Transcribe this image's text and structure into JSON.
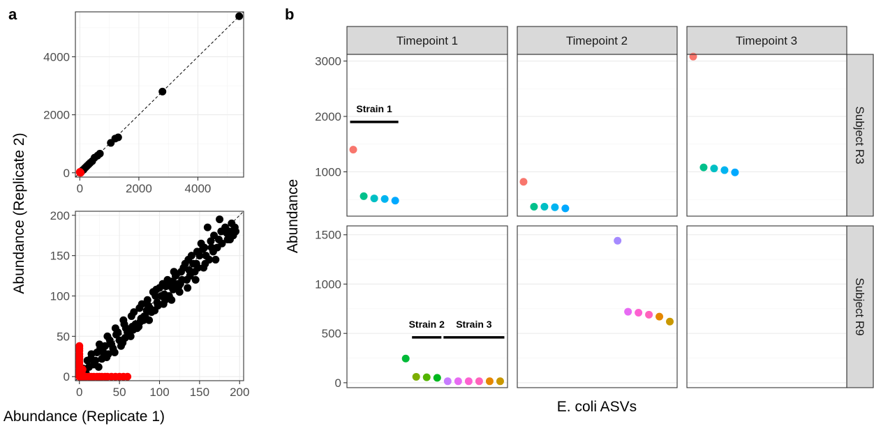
{
  "panel_a": {
    "tag": "a",
    "ylabel": "Abundance (Replicate 2)",
    "xlabel": "Abundance (Replicate 1)"
  },
  "panel_b": {
    "tag": "b",
    "ylabel": "Abundance",
    "xlabel": "E. coli ASVs",
    "columns": [
      "Timepoint 1",
      "Timepoint 2",
      "Timepoint 3"
    ],
    "rows": [
      "Subject R3",
      "Subject R9"
    ],
    "strain_labels": [
      "Strain 1",
      "Strain 2",
      "Strain 3"
    ]
  },
  "chart_data": [
    {
      "id": "a-top",
      "type": "scatter",
      "title": "",
      "xlabel": "",
      "ylabel": "",
      "xlim": [
        -150,
        5550
      ],
      "ylim": [
        -150,
        5550
      ],
      "xticks": [
        0,
        2000,
        4000
      ],
      "yticks": [
        0,
        2000,
        4000
      ],
      "reference_line": "y = x (dashed)",
      "grid": true,
      "series": [
        {
          "color": "#000000",
          "points": [
            [
              5400,
              5400
            ],
            [
              2800,
              2800
            ],
            [
              1300,
              1220
            ],
            [
              1200,
              1180
            ],
            [
              1050,
              1030
            ],
            [
              680,
              660
            ],
            [
              600,
              590
            ],
            [
              500,
              520
            ],
            [
              420,
              400
            ],
            [
              350,
              340
            ],
            [
              300,
              290
            ],
            [
              250,
              240
            ],
            [
              200,
              190
            ],
            [
              160,
              150
            ],
            [
              130,
              110
            ],
            [
              100,
              90
            ],
            [
              80,
              70
            ],
            [
              60,
              50
            ],
            [
              40,
              30
            ],
            [
              20,
              15
            ]
          ]
        },
        {
          "color": "#ff0000",
          "points": [
            [
              0,
              20
            ],
            [
              5,
              30
            ],
            [
              10,
              0
            ],
            [
              30,
              0
            ]
          ]
        }
      ]
    },
    {
      "id": "a-bottom",
      "type": "scatter",
      "title": "",
      "xlabel": "Abundance (Replicate 1)",
      "ylabel": "Abundance (Replicate 2)",
      "xlim": [
        -5,
        205
      ],
      "ylim": [
        -5,
        205
      ],
      "xticks": [
        0,
        50,
        100,
        150,
        200
      ],
      "yticks": [
        0,
        50,
        100,
        150,
        200
      ],
      "reference_line": "y = x (dashed)",
      "grid": true,
      "series": [
        {
          "color": "#000000",
          "points": [
            [
              175,
              195
            ],
            [
              190,
              190
            ],
            [
              195,
              180
            ],
            [
              185,
              170
            ],
            [
              160,
              185
            ],
            [
              165,
              160
            ],
            [
              170,
              145
            ],
            [
              150,
              150
            ],
            [
              155,
              135
            ],
            [
              140,
              150
            ],
            [
              145,
              120
            ],
            [
              130,
              135
            ],
            [
              135,
              110
            ],
            [
              120,
              125
            ],
            [
              125,
              105
            ],
            [
              110,
              120
            ],
            [
              115,
              95
            ],
            [
              100,
              110
            ],
            [
              105,
              90
            ],
            [
              95,
              100
            ],
            [
              90,
              80
            ],
            [
              85,
              95
            ],
            [
              80,
              70
            ],
            [
              75,
              85
            ],
            [
              70,
              65
            ],
            [
              65,
              75
            ],
            [
              60,
              55
            ],
            [
              55,
              70
            ],
            [
              50,
              45
            ],
            [
              45,
              60
            ],
            [
              40,
              40
            ],
            [
              35,
              50
            ],
            [
              30,
              30
            ],
            [
              25,
              40
            ],
            [
              20,
              20
            ],
            [
              15,
              28
            ],
            [
              12,
              12
            ],
            [
              10,
              20
            ],
            [
              8,
              5
            ],
            [
              5,
              10
            ],
            [
              58,
              60
            ],
            [
              62,
              52
            ],
            [
              68,
              80
            ],
            [
              72,
              60
            ],
            [
              78,
              90
            ],
            [
              82,
              75
            ],
            [
              88,
              85
            ],
            [
              92,
              105
            ],
            [
              98,
              88
            ],
            [
              102,
              100
            ],
            [
              108,
              112
            ],
            [
              112,
              100
            ],
            [
              118,
              130
            ],
            [
              122,
              115
            ],
            [
              128,
              120
            ],
            [
              132,
              140
            ],
            [
              138,
              125
            ],
            [
              142,
              140
            ],
            [
              148,
              135
            ],
            [
              152,
              165
            ],
            [
              158,
              150
            ],
            [
              162,
              145
            ],
            [
              168,
              175
            ],
            [
              172,
              160
            ],
            [
              178,
              165
            ],
            [
              182,
              185
            ],
            [
              188,
              170
            ],
            [
              192,
              175
            ],
            [
              48,
              55
            ],
            [
              42,
              35
            ],
            [
              38,
              45
            ],
            [
              32,
              38
            ],
            [
              28,
              22
            ],
            [
              22,
              30
            ],
            [
              18,
              15
            ],
            [
              52,
              38
            ],
            [
              57,
              48
            ],
            [
              67,
              58
            ],
            [
              77,
              72
            ],
            [
              87,
              70
            ],
            [
              97,
              92
            ],
            [
              107,
              95
            ],
            [
              117,
              108
            ],
            [
              127,
              130
            ],
            [
              137,
              132
            ],
            [
              147,
              155
            ],
            [
              157,
              140
            ],
            [
              167,
              155
            ],
            [
              177,
              180
            ],
            [
              187,
              180
            ],
            [
              24,
              12
            ],
            [
              34,
              24
            ],
            [
              44,
              30
            ],
            [
              54,
              42
            ],
            [
              64,
              50
            ],
            [
              74,
              62
            ],
            [
              84,
              82
            ],
            [
              94,
              82
            ],
            [
              104,
              115
            ],
            [
              114,
              112
            ],
            [
              124,
              112
            ],
            [
              134,
              120
            ],
            [
              144,
              130
            ],
            [
              154,
              158
            ],
            [
              164,
              168
            ],
            [
              174,
              170
            ],
            [
              184,
              178
            ],
            [
              194,
              185
            ],
            [
              14,
              22
            ],
            [
              26,
              35
            ],
            [
              36,
              28
            ],
            [
              46,
              52
            ],
            [
              56,
              65
            ],
            [
              66,
              62
            ],
            [
              76,
              68
            ],
            [
              86,
              88
            ],
            [
              96,
              108
            ],
            [
              106,
              102
            ],
            [
              116,
              118
            ],
            [
              126,
              115
            ],
            [
              136,
              145
            ],
            [
              146,
              140
            ],
            [
              156,
              160
            ]
          ]
        },
        {
          "color": "#ff0000",
          "points": [
            [
              0,
              2
            ],
            [
              0,
              5
            ],
            [
              0,
              8
            ],
            [
              0,
              12
            ],
            [
              0,
              15
            ],
            [
              0,
              18
            ],
            [
              0,
              22
            ],
            [
              0,
              25
            ],
            [
              0,
              28
            ],
            [
              0,
              32
            ],
            [
              0,
              35
            ],
            [
              0,
              38
            ],
            [
              0,
              0
            ],
            [
              2,
              0
            ],
            [
              5,
              0
            ],
            [
              8,
              0
            ],
            [
              12,
              0
            ],
            [
              15,
              0
            ],
            [
              18,
              0
            ],
            [
              22,
              0
            ],
            [
              25,
              0
            ],
            [
              28,
              0
            ],
            [
              32,
              0
            ],
            [
              35,
              0
            ],
            [
              40,
              0
            ],
            [
              45,
              0
            ],
            [
              50,
              0
            ],
            [
              55,
              0
            ],
            [
              60,
              0
            ],
            [
              2,
              3
            ],
            [
              3,
              6
            ],
            [
              4,
              9
            ]
          ]
        }
      ]
    },
    {
      "id": "b-R3",
      "type": "scatter",
      "title": "",
      "xlabel": "E. coli ASVs",
      "ylabel": "Abundance",
      "facet_row": "Subject R3",
      "ylim": [
        200,
        3120
      ],
      "yticks": [
        1000,
        2000,
        3000
      ],
      "grid": true,
      "panels": [
        {
          "facet_col": "Timepoint 1",
          "points": [
            {
              "x": 1,
              "y": 1400,
              "color": "#f8766d"
            },
            {
              "x": 2,
              "y": 560,
              "color": "#00c08b"
            },
            {
              "x": 3,
              "y": 520,
              "color": "#00bfc4"
            },
            {
              "x": 4,
              "y": 510,
              "color": "#00b4f0"
            },
            {
              "x": 5,
              "y": 480,
              "color": "#00a9ff"
            }
          ]
        },
        {
          "facet_col": "Timepoint 2",
          "points": [
            {
              "x": 1,
              "y": 820,
              "color": "#f8766d"
            },
            {
              "x": 2,
              "y": 370,
              "color": "#00c08b"
            },
            {
              "x": 3,
              "y": 370,
              "color": "#00bfc4"
            },
            {
              "x": 4,
              "y": 360,
              "color": "#00b4f0"
            },
            {
              "x": 5,
              "y": 340,
              "color": "#00a9ff"
            }
          ]
        },
        {
          "facet_col": "Timepoint 3",
          "points": [
            {
              "x": 1,
              "y": 3080,
              "color": "#f8766d"
            },
            {
              "x": 2,
              "y": 1080,
              "color": "#00c08b"
            },
            {
              "x": 3,
              "y": 1060,
              "color": "#00bfc4"
            },
            {
              "x": 4,
              "y": 1030,
              "color": "#00b4f0"
            },
            {
              "x": 5,
              "y": 990,
              "color": "#00a9ff"
            }
          ]
        }
      ],
      "annotations": [
        {
          "label": "Strain 1",
          "facet_col": "Timepoint 1",
          "x_range": [
            0.7,
            5.3
          ],
          "y": 1900
        }
      ]
    },
    {
      "id": "b-R9",
      "type": "scatter",
      "title": "",
      "xlabel": "E. coli ASVs",
      "ylabel": "Abundance",
      "facet_row": "Subject R9",
      "ylim": [
        -50,
        1590
      ],
      "yticks": [
        0,
        500,
        1000,
        1500
      ],
      "grid": true,
      "panels": [
        {
          "facet_col": "Timepoint 1",
          "points": [
            {
              "x": 6,
              "y": 245,
              "color": "#00ba38"
            },
            {
              "x": 7,
              "y": 60,
              "color": "#7cae00"
            },
            {
              "x": 8,
              "y": 55,
              "color": "#53b400"
            },
            {
              "x": 9,
              "y": 50,
              "color": "#00b81f"
            },
            {
              "x": 10,
              "y": 15,
              "color": "#c77cff"
            },
            {
              "x": 11,
              "y": 15,
              "color": "#e76bf3"
            },
            {
              "x": 12,
              "y": 15,
              "color": "#fd61d1"
            },
            {
              "x": 13,
              "y": 15,
              "color": "#ff62bc"
            },
            {
              "x": 14,
              "y": 15,
              "color": "#e58700"
            },
            {
              "x": 15,
              "y": 15,
              "color": "#c99800"
            }
          ]
        },
        {
          "facet_col": "Timepoint 2",
          "points": [
            {
              "x": 10,
              "y": 1440,
              "color": "#a58aff"
            },
            {
              "x": 11,
              "y": 720,
              "color": "#e76bf3"
            },
            {
              "x": 12,
              "y": 710,
              "color": "#fd61d1"
            },
            {
              "x": 13,
              "y": 690,
              "color": "#ff62bc"
            },
            {
              "x": 14,
              "y": 670,
              "color": "#e58700"
            },
            {
              "x": 15,
              "y": 620,
              "color": "#c99800"
            }
          ]
        },
        {
          "facet_col": "Timepoint 3",
          "points": []
        }
      ],
      "annotations": [
        {
          "label": "Strain 2",
          "facet_col": "Timepoint 1",
          "x_range": [
            6.6,
            9.4
          ],
          "y": 460
        },
        {
          "label": "Strain 3",
          "facet_col": "Timepoint 1",
          "x_range": [
            9.6,
            15.4
          ],
          "y": 460
        }
      ]
    }
  ]
}
